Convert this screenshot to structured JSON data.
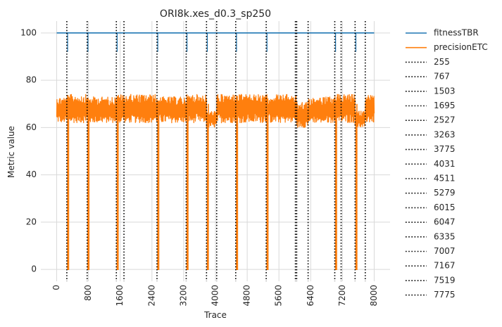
{
  "chart_data": {
    "type": "line",
    "title": "ORI8k.xes_d0.3_sp250",
    "xlabel": "Trace",
    "ylabel": "Metric value",
    "xlim": [
      -400,
      8400
    ],
    "ylim": [
      -5,
      105
    ],
    "xticks": [
      0,
      800,
      1600,
      2400,
      3200,
      4000,
      4800,
      5600,
      6400,
      7200,
      8000
    ],
    "yticks": [
      0,
      20,
      40,
      60,
      80,
      100
    ],
    "grid": true,
    "legend_position": "outside-right",
    "series": [
      {
        "name": "fitnessTBR",
        "color": "#1f77b4",
        "description": "constant 100 across all traces",
        "x": [
          0,
          8000
        ],
        "y": [
          100,
          100
        ]
      },
      {
        "name": "precisionETC",
        "color": "#ff7f0e",
        "description": "noisy band, drops to 0 just after each drift point",
        "segments": [
          {
            "x": [
              0,
              255
            ],
            "low": 62,
            "high": 73
          },
          {
            "x": [
              255,
              767
            ],
            "low": 62,
            "high": 74
          },
          {
            "x": [
              767,
              1503
            ],
            "low": 62,
            "high": 73
          },
          {
            "x": [
              1503,
              2527
            ],
            "low": 62,
            "high": 74
          },
          {
            "x": [
              2527,
              3263
            ],
            "low": 62,
            "high": 73
          },
          {
            "x": [
              3263,
              3775
            ],
            "low": 62,
            "high": 74
          },
          {
            "x": [
              3775,
              4031
            ],
            "low": 60,
            "high": 67
          },
          {
            "x": [
              4031,
              5279
            ],
            "low": 62,
            "high": 74
          },
          {
            "x": [
              5279,
              6047
            ],
            "low": 62,
            "high": 74
          },
          {
            "x": [
              6047,
              6335
            ],
            "low": 60,
            "high": 71
          },
          {
            "x": [
              6335,
              7007
            ],
            "low": 62,
            "high": 73
          },
          {
            "x": [
              7007,
              7519
            ],
            "low": 62,
            "high": 74
          },
          {
            "x": [
              7519,
              7775
            ],
            "low": 60,
            "high": 67
          },
          {
            "x": [
              7775,
              8000
            ],
            "low": 62,
            "high": 74
          }
        ],
        "drops_to_zero_at": [
          255,
          767,
          1503,
          2527,
          3263,
          3775,
          4511,
          5279,
          7007,
          7519
        ]
      }
    ],
    "vlines": [
      255,
      767,
      1503,
      1695,
      2527,
      3263,
      3775,
      4031,
      4511,
      5279,
      6015,
      6047,
      6335,
      7007,
      7167,
      7519,
      7775
    ],
    "vline_labels": [
      "255",
      "767",
      "1503",
      "1695",
      "2527",
      "3263",
      "3775",
      "4031",
      "4511",
      "5279",
      "6015",
      "6047",
      "6335",
      "7007",
      "7167",
      "7519",
      "7775"
    ]
  }
}
